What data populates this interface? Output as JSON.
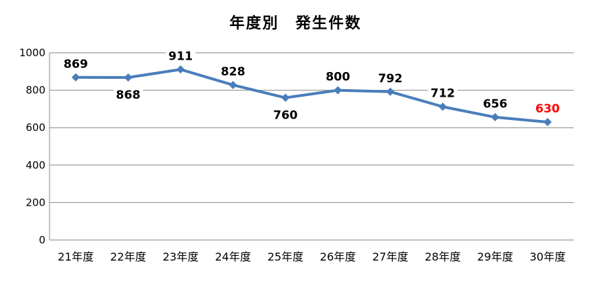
{
  "chart_data": {
    "type": "line",
    "title": "年度別　発生件数",
    "categories": [
      "21年度",
      "22年度",
      "23年度",
      "24年度",
      "25年度",
      "26年度",
      "27年度",
      "28年度",
      "29年度",
      "30年度"
    ],
    "series": [
      {
        "values": [
          869,
          868,
          911,
          828,
          760,
          800,
          792,
          712,
          656,
          630
        ]
      }
    ],
    "data_labels": [
      "869",
      "868",
      "911",
      "828",
      "760",
      "800",
      "792",
      "712",
      "656",
      "630"
    ],
    "highlight_label_index": 9,
    "ylim": [
      0,
      1000
    ],
    "yticks": [
      0,
      200,
      400,
      600,
      800,
      1000
    ],
    "ytick_labels": [
      "0",
      "200",
      "400",
      "600",
      "800",
      "1000"
    ],
    "xlabel": "",
    "ylabel": "",
    "grid": true,
    "legend": "none",
    "colors": {
      "line": "#4a7ebb",
      "marker": "#4a7ebb",
      "label_default": "#000000",
      "label_highlight": "#ff0000",
      "grid": "#868686",
      "axis": "#868686"
    },
    "marker": "diamond"
  }
}
